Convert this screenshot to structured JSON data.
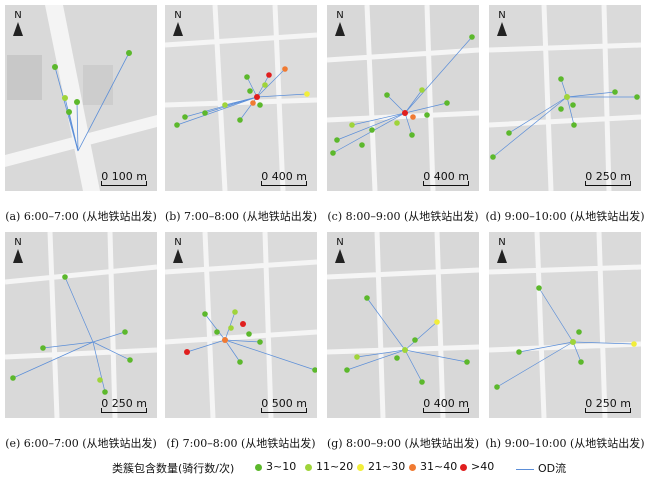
{
  "panels": [
    {
      "caption": "(a) 6:00–7:00 (从地铁站出发)",
      "north": "N",
      "scale": "0  100 m"
    },
    {
      "caption": "(b) 7:00–8:00 (从地铁站出发)",
      "north": "N",
      "scale": "0  400 m"
    },
    {
      "caption": "(c) 8:00–9:00 (从地铁站出发)",
      "north": "N",
      "scale": "0  400 m"
    },
    {
      "caption": "(d) 9:00–10:00 (从地铁站出发)",
      "north": "N",
      "scale": "0  250 m"
    },
    {
      "caption": "(e) 6:00–7:00 (从地铁站出发)",
      "north": "N",
      "scale": "0  250 m"
    },
    {
      "caption": "(f) 7:00–8:00 (从地铁站出发)",
      "north": "N",
      "scale": "0  500 m"
    },
    {
      "caption": "(g) 8:00–9:00 (从地铁站出发)",
      "north": "N",
      "scale": "0  400 m"
    },
    {
      "caption": "(h) 9:00–10:00 (从地铁站出发)",
      "north": "N",
      "scale": "0 250 m"
    }
  ],
  "legend": {
    "title": "类簇包含数量(骑行数/次)",
    "items": [
      {
        "label": "3~10",
        "color": "#5cb82c"
      },
      {
        "label": "11~20",
        "color": "#9fd43a"
      },
      {
        "label": "21~30",
        "color": "#f2ee3a"
      },
      {
        "label": "31~40",
        "color": "#f07a32"
      },
      {
        "label": ">40",
        "color": "#e01e1e"
      }
    ],
    "flow_label": "OD流",
    "flow_color": "#5b8ed8"
  }
}
